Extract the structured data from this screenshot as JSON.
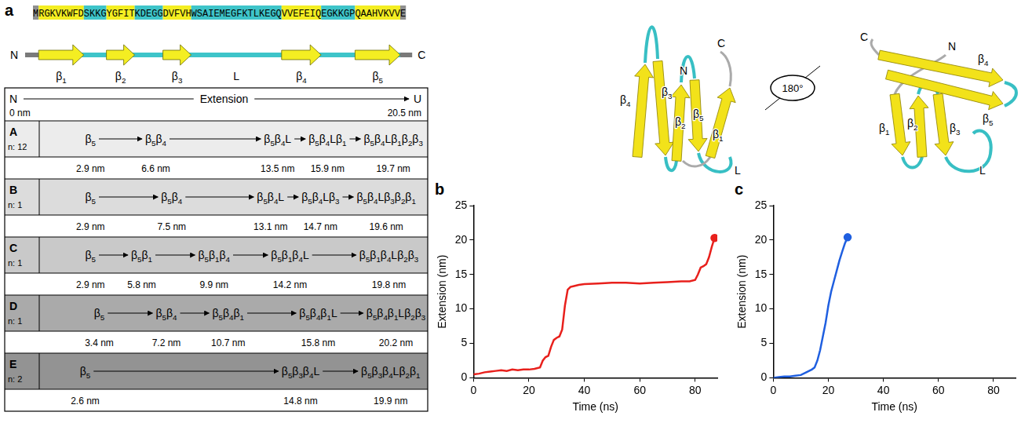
{
  "panel_a": {
    "label": "a",
    "sequence": [
      {
        "text": "M",
        "kind": "terminal"
      },
      {
        "text": "RGKVKWFD",
        "kind": "strand"
      },
      {
        "text": "SKKG",
        "kind": "loop"
      },
      {
        "text": "YGFIT",
        "kind": "strand"
      },
      {
        "text": "KDEGG",
        "kind": "loop"
      },
      {
        "text": "DVFVH",
        "kind": "strand"
      },
      {
        "text": "WSAIEMEGFKTLKEGQ",
        "kind": "loop"
      },
      {
        "text": "VVEFEIQ",
        "kind": "strand"
      },
      {
        "text": "EGKKGP",
        "kind": "loop"
      },
      {
        "text": "QAAHVKVV",
        "kind": "strand"
      },
      {
        "text": "E",
        "kind": "terminal"
      }
    ],
    "topology": {
      "start": "N",
      "end": "C",
      "strands": [
        "β1",
        "β2",
        "β3",
        "β4",
        "β5"
      ],
      "loop": "L"
    },
    "pathways": {
      "header": {
        "start": "N",
        "title": "Extension",
        "end": "U",
        "min": "0 nm",
        "max": "20.5 nm"
      },
      "rows": [
        {
          "id": "A",
          "count": "n: 12",
          "steps": [
            "β5",
            "β5β4",
            "β5β4L",
            "β5β4Lβ1",
            "β5β4Lβ1β2β3"
          ],
          "extensions": [
            "2.9 nm",
            "6.6 nm",
            "13.5 nm",
            "15.9 nm",
            "19.7 nm"
          ]
        },
        {
          "id": "B",
          "count": "n: 1",
          "steps": [
            "β5",
            "β5β4",
            "β5β4L",
            "β5β4Lβ3",
            "β5β4Lβ3β2β1"
          ],
          "extensions": [
            "2.9 nm",
            "7.5 nm",
            "13.1 nm",
            "14.7 nm",
            "19.6 nm"
          ]
        },
        {
          "id": "C",
          "count": "n: 1",
          "steps": [
            "β5",
            "β5β1",
            "β5β1β4",
            "β5β1β4L",
            "β5β1β4Lβ2β3"
          ],
          "extensions": [
            "2.9 nm",
            "5.8 nm",
            "9.9 nm",
            "14.2 nm",
            "19.8 nm"
          ]
        },
        {
          "id": "D",
          "count": "n: 1",
          "steps": [
            "β5",
            "β5β4",
            "β5β4β1",
            "β5β4β1L",
            "β5β4β1Lβ2β3"
          ],
          "extensions": [
            "3.4 nm",
            "7.2 nm",
            "10.7 nm",
            "15.8 nm",
            "20.2 nm"
          ]
        },
        {
          "id": "E",
          "count": "n: 2",
          "steps": [
            "β5",
            "β5β3β4L",
            "β5β3β4Lβ2β1"
          ],
          "extensions": [
            "2.6 nm",
            "14.8 nm",
            "19.9 nm"
          ]
        }
      ]
    },
    "structure": {
      "views": [
        {
          "labels": [
            "β4",
            "β3",
            "N",
            "C",
            "β2",
            "β5",
            "β1",
            "L"
          ]
        },
        {
          "labels": [
            "C",
            "N",
            "β4",
            "β5",
            "β1",
            "β2",
            "β3",
            "L"
          ]
        }
      ],
      "rotation": "180°"
    }
  },
  "chart_data": [
    {
      "panel_label": "b",
      "type": "line",
      "x_label": "Time (ns)",
      "y_label": "Extension (nm)",
      "x": [
        0,
        2,
        4,
        6,
        8,
        10,
        12,
        14,
        16,
        18,
        20,
        22,
        24,
        25,
        26,
        27,
        28,
        29,
        30,
        31,
        32,
        33,
        34,
        35,
        36,
        38,
        40,
        45,
        50,
        55,
        60,
        65,
        70,
        75,
        78,
        80,
        81,
        82,
        83,
        84,
        85,
        86,
        87
      ],
      "series": [
        {
          "color": "#e8201c",
          "marker": "end",
          "values": [
            0.5,
            0.6,
            0.8,
            0.9,
            1.0,
            1.1,
            1.0,
            1.2,
            1.1,
            1.2,
            1.2,
            1.3,
            1.5,
            2.5,
            3.0,
            3.2,
            4.5,
            5.5,
            5.8,
            6.0,
            7.0,
            10.5,
            12.8,
            13.2,
            13.3,
            13.5,
            13.6,
            13.7,
            13.8,
            13.8,
            13.7,
            13.8,
            13.9,
            14.0,
            14.0,
            14.2,
            15.0,
            16.0,
            16.2,
            16.5,
            17.5,
            19.0,
            20.3
          ]
        }
      ],
      "xlim": [
        0,
        88
      ],
      "xticks": [
        0,
        20,
        40,
        60,
        80
      ],
      "ylim": [
        0,
        25
      ],
      "yticks": [
        0,
        5,
        10,
        15,
        20,
        25
      ],
      "grid": false
    },
    {
      "panel_label": "c",
      "type": "line",
      "x_label": "Time (ns)",
      "y_label": "Extension (nm)",
      "x": [
        0,
        2,
        4,
        6,
        8,
        10,
        12,
        13,
        14,
        15,
        16,
        17,
        18,
        19,
        20,
        21,
        22,
        23,
        24,
        25,
        26,
        27
      ],
      "series": [
        {
          "color": "#1f5fe0",
          "marker": "end",
          "values": [
            0.0,
            0.1,
            0.2,
            0.2,
            0.3,
            0.4,
            0.8,
            1.0,
            1.2,
            1.5,
            2.5,
            4.0,
            6.0,
            8.0,
            10.5,
            12.5,
            14.0,
            15.5,
            17.0,
            18.3,
            19.5,
            20.4
          ]
        }
      ],
      "xlim": [
        0,
        88
      ],
      "xticks": [
        0,
        20,
        40,
        60,
        80
      ],
      "ylim": [
        0,
        25
      ],
      "yticks": [
        0,
        5,
        10,
        15,
        20,
        25
      ],
      "grid": false
    }
  ]
}
